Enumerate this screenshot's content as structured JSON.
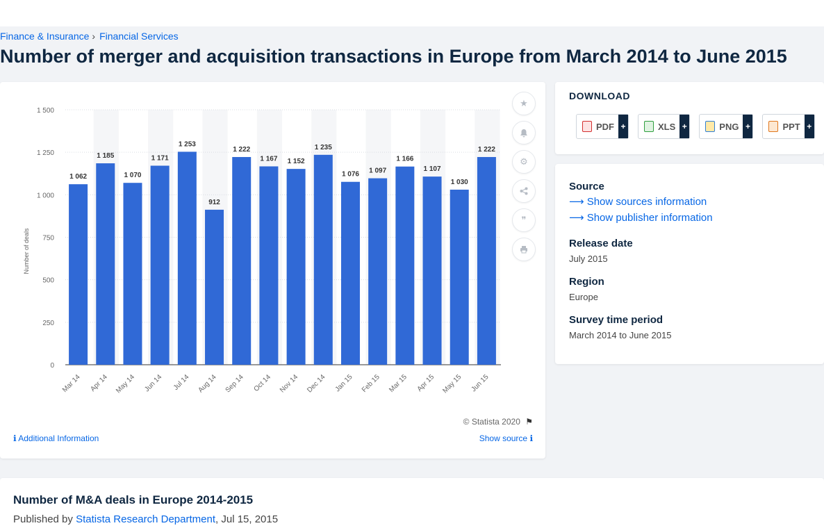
{
  "breadcrumb": {
    "items": [
      "Finance & Insurance",
      "Financial Services"
    ],
    "separator": "›"
  },
  "page_title": "Number of merger and acquisition transactions in Europe from March 2014 to June 2015",
  "chart_data": {
    "type": "bar",
    "categories": [
      "Mar 14",
      "Apr 14",
      "May 14",
      "Jun 14",
      "Jul 14",
      "Aug 14",
      "Sep 14",
      "Oct 14",
      "Nov 14",
      "Dec 14",
      "Jan 15",
      "Feb 15",
      "Mar 15",
      "Apr 15",
      "May 15",
      "Jun 15"
    ],
    "values": [
      1062,
      1185,
      1070,
      1171,
      1253,
      912,
      1222,
      1167,
      1152,
      1235,
      1076,
      1097,
      1166,
      1107,
      1030,
      1222
    ],
    "value_labels": [
      "1 062",
      "1 185",
      "1 070",
      "1 171",
      "1 253",
      "912",
      "1 222",
      "1 167",
      "1 152",
      "1 235",
      "1 076",
      "1 097",
      "1 166",
      "1 107",
      "1 030",
      "1 222"
    ],
    "yticks": [
      0,
      250,
      500,
      750,
      1000,
      1250,
      1500
    ],
    "ytick_labels": [
      "0",
      "250",
      "500",
      "750",
      "1 000",
      "1 250",
      "1 500"
    ],
    "ylim": [
      0,
      1500
    ],
    "ylabel": "Number of deals",
    "xlabel": "",
    "grid": true,
    "colors": {
      "bar": "#3069d6",
      "band": "#f5f6f8",
      "grid": "#d9dde3"
    }
  },
  "chart_footer": {
    "copyright": "© Statista 2020",
    "additional_info": "Additional Information",
    "show_source": "Show source"
  },
  "tools": [
    "star-icon",
    "bell-icon",
    "gear-icon",
    "share-icon",
    "quote-icon",
    "print-icon"
  ],
  "download": {
    "title": "DOWNLOAD",
    "formats": [
      {
        "label": "PDF",
        "color": "#d32f2f"
      },
      {
        "label": "XLS",
        "color": "#2e9e3e"
      },
      {
        "label": "PNG",
        "color": "#2f7fd6"
      },
      {
        "label": "PPT",
        "color": "#e0771c"
      }
    ],
    "plus": "+"
  },
  "info": {
    "source_label": "Source",
    "show_sources": "Show sources information",
    "show_publisher": "Show publisher information",
    "release_label": "Release date",
    "release_value": "July 2015",
    "region_label": "Region",
    "region_value": "Europe",
    "survey_label": "Survey time period",
    "survey_value": "March 2014 to June 2015"
  },
  "publication": {
    "title": "Number of M&A deals in Europe 2014-2015",
    "published_by": "Published by",
    "publisher": "Statista Research Department",
    "date": ", Jul 15, 2015"
  },
  "accent": "#0666e5"
}
